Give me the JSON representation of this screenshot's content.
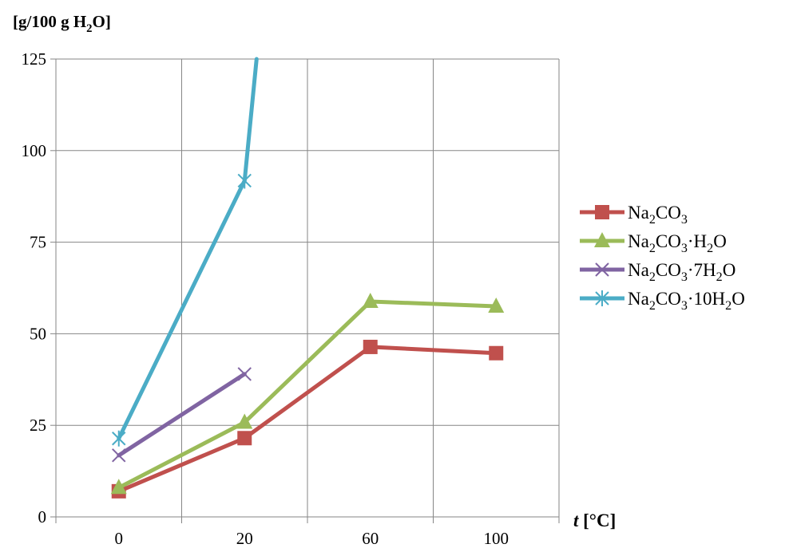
{
  "chart_data": {
    "type": "line",
    "ylabel": "[g/100 g H2O]",
    "xlabel": "t [°C]",
    "categories": [
      "0",
      "20",
      "60",
      "100"
    ],
    "ylim": [
      0,
      125
    ],
    "yticks": [
      0,
      25,
      50,
      75,
      100,
      125
    ],
    "grid": true,
    "legend_position": "right",
    "series": [
      {
        "name": "Na2CO3",
        "color": "#C0504D",
        "marker": "square",
        "values": [
          7,
          21.5,
          46.4,
          44.7
        ]
      },
      {
        "name": "Na2CO3·H2O",
        "color": "#9BBB59",
        "marker": "triangle",
        "values": [
          8,
          25.8,
          58.8,
          57.5
        ]
      },
      {
        "name": "Na2CO3·7H2O",
        "color": "#8064A2",
        "marker": "x",
        "values": [
          16.8,
          39,
          null,
          null
        ]
      },
      {
        "name": "Na2CO3·10H2O",
        "color": "#4BACC6",
        "marker": "star",
        "values": [
          21.4,
          91.8,
          null,
          null
        ],
        "extends_beyond_top_after_index": 1
      }
    ]
  }
}
